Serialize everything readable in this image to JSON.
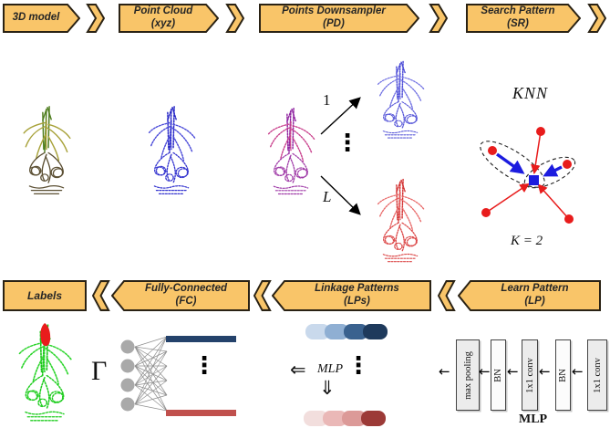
{
  "flow_top": [
    {
      "label": "3D model",
      "sub": ""
    },
    {
      "label": "Point Cloud",
      "sub": "(xyz)"
    },
    {
      "label": "Points Downsampler",
      "sub": "(PD)"
    },
    {
      "label": "Search Pattern",
      "sub": "(SR)"
    }
  ],
  "flow_bottom": [
    {
      "label": "Labels",
      "sub": ""
    },
    {
      "label": "Fully-Connected",
      "sub": "(FC)"
    },
    {
      "label": "Linkage Patterns",
      "sub": "(LPs)"
    },
    {
      "label": "Learn Pattern",
      "sub": "(LP)"
    }
  ],
  "downsampler": {
    "first_level": "1",
    "last_level": "L",
    "ellipsis": "⋮"
  },
  "knn": {
    "title": "KNN",
    "k_text": "K = 2"
  },
  "fully_connected": {
    "gamma": "Γ",
    "ellipsis": "⋮",
    "class_bar_top": "#24426B",
    "class_bar_bottom": "#C0504D"
  },
  "linkage": {
    "mlp": "MLP",
    "arrow_left": "⇐",
    "arrow_down": "⇓",
    "ellipsis": "⋮",
    "blue_gradient": [
      "#C9D9EC",
      "#8FAFD3",
      "#3A628F",
      "#1E3A5C"
    ],
    "red_gradient": [
      "#F2DEDD",
      "#EAB8B7",
      "#DC9A98",
      "#9C3A37"
    ]
  },
  "learn_pattern": {
    "layers": [
      "max pooling",
      "BN",
      "1x1 conv",
      "BN",
      "1x1 conv"
    ],
    "arrow": "←",
    "mlp": "MLP"
  },
  "colors": {
    "banner_fill": "#F9C569",
    "banner_border": "#2A2214",
    "banner_text": "#262626",
    "knn_point": "#E81C1C",
    "knn_center": "#1C1CDF"
  }
}
